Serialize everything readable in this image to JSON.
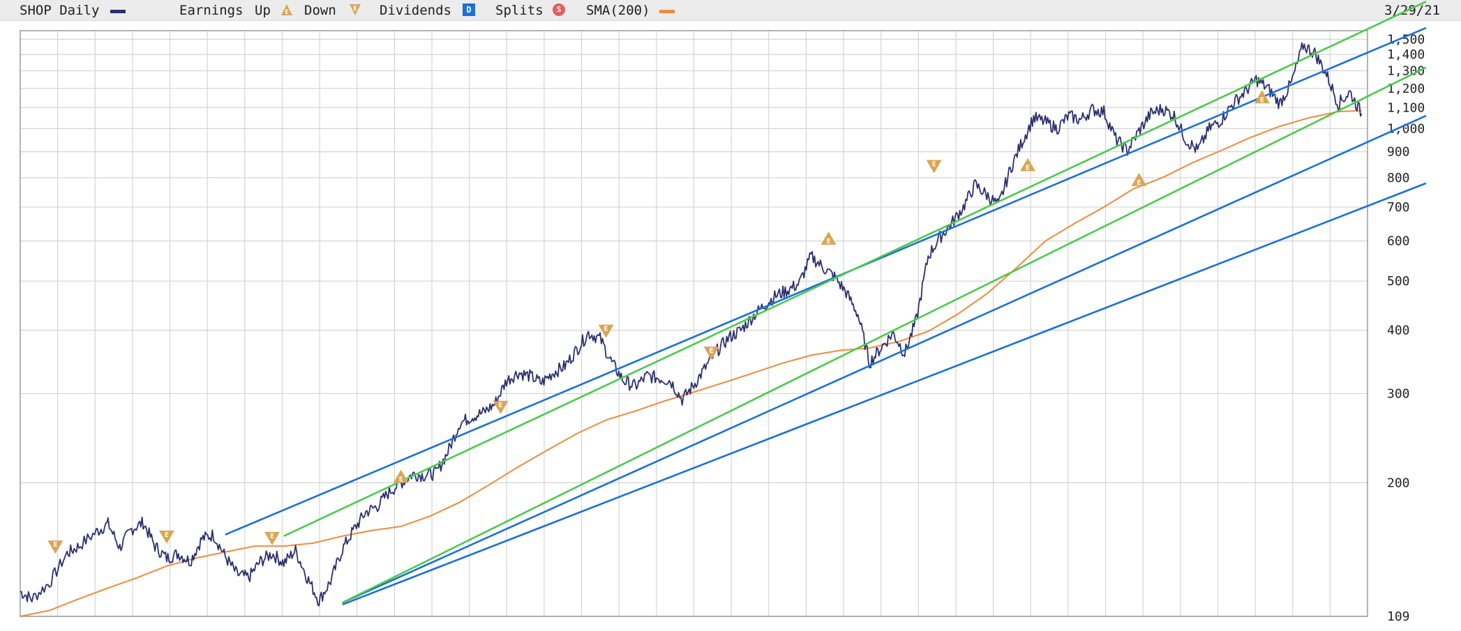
{
  "legend": {
    "symbol_label": "SHOP Daily",
    "earnings_label": "Earnings",
    "up_label": "Up",
    "down_label": "Down",
    "dividends_label": "Dividends",
    "dividends_badge": "D",
    "splits_label": "Splits",
    "splits_badge": "S",
    "sma_label": "SMA(200)",
    "date": "3/29/21"
  },
  "colors": {
    "price": "#2a2f6e",
    "sma": "#f08a3c",
    "trend_blue": "#1a6fdc",
    "trend_green": "#4cc94c",
    "earnings_marker": "#d9a654",
    "grid": "#d4d4d4",
    "dividends_badge": "#1a6fdc",
    "splits_badge": "#e06060"
  },
  "chart_data": {
    "type": "line",
    "title": "SHOP Daily",
    "date": "3/29/21",
    "y_scale": "log",
    "ylim": [
      109,
      1500
    ],
    "y_ticks": [
      109,
      200,
      300,
      400,
      500,
      600,
      700,
      800,
      900,
      "1,000",
      "1,100",
      "1,200",
      "1,300",
      "1,400",
      "1,500"
    ],
    "grid": true,
    "legend_position": "top",
    "series": [
      {
        "name": "SHOP Daily",
        "values": [
          [
            0,
            122
          ],
          [
            2,
            118
          ],
          [
            5,
            127
          ],
          [
            8,
            145
          ],
          [
            10,
            150
          ],
          [
            13,
            160
          ],
          [
            15,
            166
          ],
          [
            17,
            149
          ],
          [
            19,
            162
          ],
          [
            21,
            167
          ],
          [
            23,
            150
          ],
          [
            25,
            142
          ],
          [
            27,
            145
          ],
          [
            29,
            140
          ],
          [
            31,
            155
          ],
          [
            33,
            158
          ],
          [
            35,
            143
          ],
          [
            37,
            132
          ],
          [
            39,
            130
          ],
          [
            41,
            140
          ],
          [
            43,
            145
          ],
          [
            45,
            139
          ],
          [
            47,
            147
          ],
          [
            49,
            130
          ],
          [
            51,
            117
          ],
          [
            53,
            128
          ],
          [
            55,
            148
          ],
          [
            57,
            162
          ],
          [
            59,
            175
          ],
          [
            61,
            180
          ],
          [
            63,
            192
          ],
          [
            65,
            200
          ],
          [
            67,
            208
          ],
          [
            69,
            207
          ],
          [
            71,
            209
          ],
          [
            73,
            230
          ],
          [
            75,
            262
          ],
          [
            77,
            270
          ],
          [
            79,
            275
          ],
          [
            81,
            286
          ],
          [
            83,
            318
          ],
          [
            85,
            330
          ],
          [
            87,
            325
          ],
          [
            89,
            315
          ],
          [
            91,
            330
          ],
          [
            93,
            340
          ],
          [
            95,
            366
          ],
          [
            97,
            395
          ],
          [
            99,
            385
          ],
          [
            101,
            345
          ],
          [
            103,
            318
          ],
          [
            105,
            310
          ],
          [
            107,
            325
          ],
          [
            109,
            322
          ],
          [
            111,
            318
          ],
          [
            113,
            292
          ],
          [
            115,
            312
          ],
          [
            117,
            338
          ],
          [
            119,
            365
          ],
          [
            121,
            387
          ],
          [
            123,
            400
          ],
          [
            125,
            425
          ],
          [
            127,
            448
          ],
          [
            129,
            468
          ],
          [
            131,
            480
          ],
          [
            133,
            495
          ],
          [
            135,
            560
          ],
          [
            137,
            533
          ],
          [
            139,
            510
          ],
          [
            141,
            475
          ],
          [
            143,
            430
          ],
          [
            145,
            345
          ],
          [
            147,
            370
          ],
          [
            149,
            395
          ],
          [
            151,
            360
          ],
          [
            153,
            420
          ],
          [
            155,
            560
          ],
          [
            157,
            610
          ],
          [
            159,
            650
          ],
          [
            161,
            700
          ],
          [
            163,
            775
          ],
          [
            165,
            740
          ],
          [
            167,
            705
          ],
          [
            169,
            830
          ],
          [
            171,
            940
          ],
          [
            173,
            1050
          ],
          [
            175,
            1030
          ],
          [
            177,
            1000
          ],
          [
            179,
            1060
          ],
          [
            181,
            1040
          ],
          [
            183,
            1090
          ],
          [
            185,
            1080
          ],
          [
            187,
            955
          ],
          [
            189,
            905
          ],
          [
            191,
            990
          ],
          [
            193,
            1070
          ],
          [
            195,
            1095
          ],
          [
            197,
            1060
          ],
          [
            199,
            950
          ],
          [
            201,
            905
          ],
          [
            203,
            1000
          ],
          [
            205,
            1040
          ],
          [
            207,
            1120
          ],
          [
            209,
            1180
          ],
          [
            211,
            1250
          ],
          [
            213,
            1200
          ],
          [
            215,
            1120
          ],
          [
            217,
            1230
          ],
          [
            219,
            1460
          ],
          [
            221,
            1410
          ],
          [
            223,
            1280
          ],
          [
            225,
            1120
          ],
          [
            227,
            1180
          ],
          [
            229,
            1070
          ]
        ]
      },
      {
        "name": "SMA(200)",
        "values": [
          [
            0,
            109
          ],
          [
            5,
            112
          ],
          [
            10,
            118
          ],
          [
            15,
            124
          ],
          [
            20,
            130
          ],
          [
            25,
            137
          ],
          [
            30,
            142
          ],
          [
            35,
            146
          ],
          [
            40,
            150
          ],
          [
            45,
            150
          ],
          [
            50,
            152
          ],
          [
            55,
            157
          ],
          [
            60,
            161
          ],
          [
            65,
            164
          ],
          [
            70,
            172
          ],
          [
            75,
            183
          ],
          [
            80,
            198
          ],
          [
            85,
            215
          ],
          [
            90,
            232
          ],
          [
            95,
            250
          ],
          [
            100,
            266
          ],
          [
            105,
            277
          ],
          [
            110,
            290
          ],
          [
            115,
            302
          ],
          [
            120,
            315
          ],
          [
            125,
            329
          ],
          [
            130,
            344
          ],
          [
            135,
            357
          ],
          [
            140,
            365
          ],
          [
            145,
            369
          ],
          [
            150,
            380
          ],
          [
            155,
            398
          ],
          [
            160,
            430
          ],
          [
            165,
            472
          ],
          [
            170,
            530
          ],
          [
            175,
            600
          ],
          [
            180,
            650
          ],
          [
            185,
            700
          ],
          [
            190,
            760
          ],
          [
            195,
            800
          ],
          [
            200,
            855
          ],
          [
            205,
            905
          ],
          [
            210,
            960
          ],
          [
            215,
            1010
          ],
          [
            220,
            1050
          ],
          [
            225,
            1080
          ],
          [
            229,
            1085
          ]
        ]
      }
    ],
    "trend_lines": [
      {
        "color": "blue",
        "from": [
          35,
          158
        ],
        "to": [
          240,
          1580
        ]
      },
      {
        "color": "green",
        "from": [
          45,
          157
        ],
        "to": [
          240,
          1780
        ]
      },
      {
        "color": "blue",
        "from": [
          55,
          116
        ],
        "to": [
          240,
          1060
        ]
      },
      {
        "color": "green",
        "from": [
          55,
          116
        ],
        "to": [
          240,
          1320
        ]
      },
      {
        "color": "blue",
        "from": [
          55,
          115
        ],
        "to": [
          240,
          780
        ]
      }
    ],
    "earnings_events": [
      {
        "x": 6,
        "direction": "down",
        "value": 150
      },
      {
        "x": 25,
        "direction": "down",
        "value": 157
      },
      {
        "x": 43,
        "direction": "down",
        "value": 156
      },
      {
        "x": 65,
        "direction": "up",
        "value": 205
      },
      {
        "x": 82,
        "direction": "down",
        "value": 283
      },
      {
        "x": 100,
        "direction": "down",
        "value": 400
      },
      {
        "x": 118,
        "direction": "down",
        "value": 362
      },
      {
        "x": 138,
        "direction": "up",
        "value": 605
      },
      {
        "x": 156,
        "direction": "down",
        "value": 845
      },
      {
        "x": 172,
        "direction": "up",
        "value": 845
      },
      {
        "x": 191,
        "direction": "up",
        "value": 790
      },
      {
        "x": 212,
        "direction": "up",
        "value": 1150
      }
    ],
    "x_count": 230
  }
}
